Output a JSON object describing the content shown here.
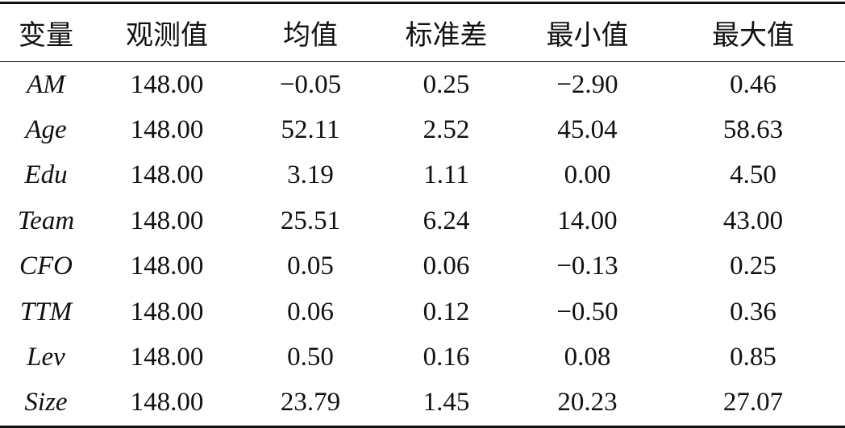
{
  "table": {
    "header": [
      "变量",
      "观测值",
      "均值",
      "标准差",
      "最小值",
      "最大值"
    ],
    "rows": [
      [
        "AM",
        "148.00",
        "−0.05",
        "0.25",
        "−2.90",
        "0.46"
      ],
      [
        "Age",
        "148.00",
        "52.11",
        "2.52",
        "45.04",
        "58.63"
      ],
      [
        "Edu",
        "148.00",
        "3.19",
        "1.11",
        "0.00",
        "4.50"
      ],
      [
        "Team",
        "148.00",
        "25.51",
        "6.24",
        "14.00",
        "43.00"
      ],
      [
        "CFO",
        "148.00",
        "0.05",
        "0.06",
        "−0.13",
        "0.25"
      ],
      [
        "TTM",
        "148.00",
        "0.06",
        "0.12",
        "−0.50",
        "0.36"
      ],
      [
        "Lev",
        "148.00",
        "0.50",
        "0.16",
        "0.08",
        "0.85"
      ],
      [
        "Size",
        "148.00",
        "23.79",
        "1.45",
        "20.23",
        "27.07"
      ]
    ]
  }
}
